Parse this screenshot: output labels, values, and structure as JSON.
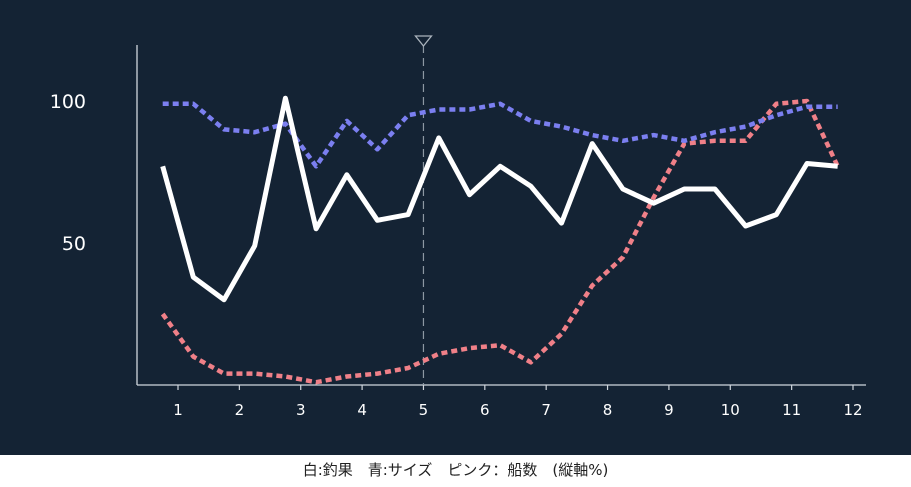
{
  "caption": "白:釣果　青:サイズ　ピンク：船数　(縦軸%)",
  "chart_data": {
    "type": "line",
    "x_ticks": [
      "1",
      "2",
      "3",
      "4",
      "5",
      "6",
      "7",
      "8",
      "9",
      "10",
      "11",
      "12"
    ],
    "y_ticks": [
      {
        "value": 50,
        "label": "50"
      },
      {
        "value": 100,
        "label": "100"
      }
    ],
    "ylim": [
      0,
      120
    ],
    "xlim": [
      0.5,
      12.5
    ],
    "marker": {
      "x": 5
    },
    "x": [
      0.75,
      1.0,
      1.25,
      1.5,
      1.75,
      2.0,
      2.25,
      2.5,
      2.75,
      3.0,
      3.25,
      3.5,
      3.75,
      4.0,
      4.25,
      4.5,
      4.75,
      5.0,
      5.25,
      5.5,
      5.75,
      6.0,
      6.25,
      6.5,
      6.75,
      7.0,
      7.25,
      7.5,
      7.75,
      8.0,
      8.25,
      8.5,
      8.75,
      9.0,
      9.25,
      9.5,
      9.75,
      10.0,
      10.25,
      10.5,
      10.75,
      11.0,
      11.25,
      11.5,
      11.75,
      12.0
    ],
    "series": [
      {
        "key": "catch",
        "color": "#ffffff",
        "style": "solid",
        "values": [
          77,
          null,
          38,
          null,
          30,
          null,
          49,
          null,
          101,
          null,
          55,
          null,
          74,
          null,
          58,
          null,
          60,
          null,
          87,
          null,
          67,
          null,
          77,
          null,
          70,
          null,
          57,
          null,
          85,
          null,
          69,
          null,
          64,
          null,
          69,
          null,
          69,
          null,
          56,
          null,
          60,
          null,
          78,
          null,
          77,
          null
        ]
      },
      {
        "key": "size",
        "color": "#7b7ff0",
        "style": "dashed",
        "values": [
          99,
          null,
          99,
          null,
          90,
          null,
          89,
          null,
          92,
          null,
          77,
          null,
          93,
          null,
          83,
          null,
          95,
          null,
          97,
          null,
          97,
          null,
          99,
          null,
          93,
          null,
          91,
          null,
          88,
          null,
          86,
          null,
          88,
          null,
          86,
          null,
          89,
          null,
          91,
          null,
          95,
          null,
          98,
          null,
          98,
          null
        ]
      },
      {
        "key": "boats",
        "color": "#f08088",
        "style": "dashed",
        "values": [
          25,
          null,
          10,
          null,
          4,
          null,
          4,
          null,
          3,
          null,
          1,
          null,
          3,
          null,
          4,
          null,
          6,
          null,
          11,
          null,
          13,
          null,
          14,
          null,
          8,
          null,
          18,
          null,
          35,
          null,
          45,
          null,
          66,
          null,
          85,
          null,
          86,
          null,
          86,
          null,
          99,
          null,
          100,
          null,
          77,
          null
        ]
      }
    ]
  }
}
